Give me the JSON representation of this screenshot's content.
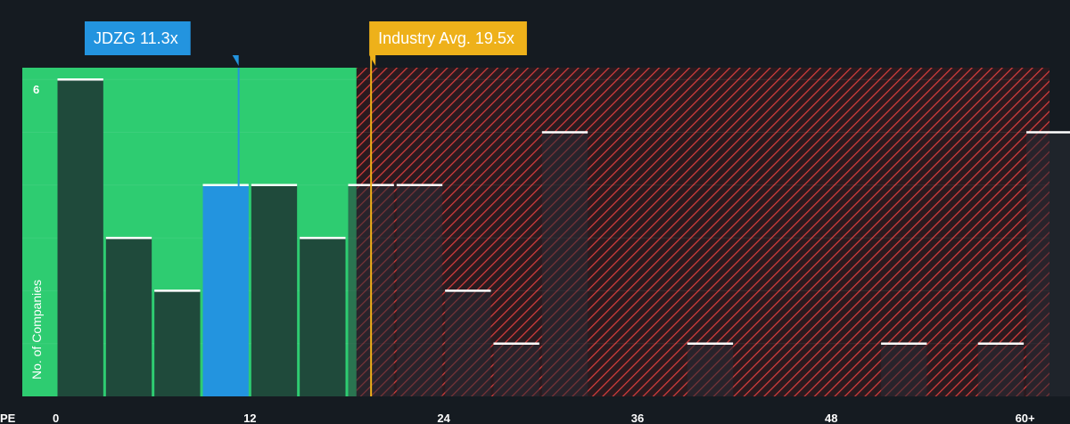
{
  "chart_data": {
    "type": "bar",
    "xlabel": "PE",
    "ylabel": "No. of Companies",
    "x_ticks": [
      "0",
      "12",
      "24",
      "36",
      "48",
      "60+"
    ],
    "x_tick_values": [
      0,
      12,
      24,
      36,
      48,
      60
    ],
    "xlim": [
      0,
      61
    ],
    "y_tick_labels": [
      "6"
    ],
    "ylim": [
      0,
      6
    ],
    "bin_width": 3,
    "bins": [
      {
        "x": 0,
        "count": 6
      },
      {
        "x": 3,
        "count": 3
      },
      {
        "x": 6,
        "count": 2
      },
      {
        "x": 9,
        "count": 4
      },
      {
        "x": 12,
        "count": 4
      },
      {
        "x": 15,
        "count": 3
      },
      {
        "x": 18,
        "count": 4
      },
      {
        "x": 21,
        "count": 4
      },
      {
        "x": 24,
        "count": 2
      },
      {
        "x": 27,
        "count": 1
      },
      {
        "x": 30,
        "count": 5
      },
      {
        "x": 39,
        "count": 1
      },
      {
        "x": 51,
        "count": 1
      },
      {
        "x": 57,
        "count": 1
      },
      {
        "x": 60,
        "count": 5
      }
    ],
    "highlight_bin_x": 9,
    "company": {
      "label": "JDZG 11.3x",
      "value": 11.3
    },
    "industry_avg": {
      "label": "Industry Avg. 19.5x",
      "value": 19.5
    },
    "fair_zone_end": 18.6,
    "colors": {
      "background": "#151b21",
      "fair_zone": "#2ecc71",
      "bar": "#1f4a3b",
      "highlight_bar": "#2394df",
      "over_zone_stripe": "#e0413f",
      "over_zone_bg": "#2a1a1f",
      "company_callout": "#2394df",
      "industry_callout": "#eeb11a",
      "bar_cap": "#ffffff"
    }
  }
}
